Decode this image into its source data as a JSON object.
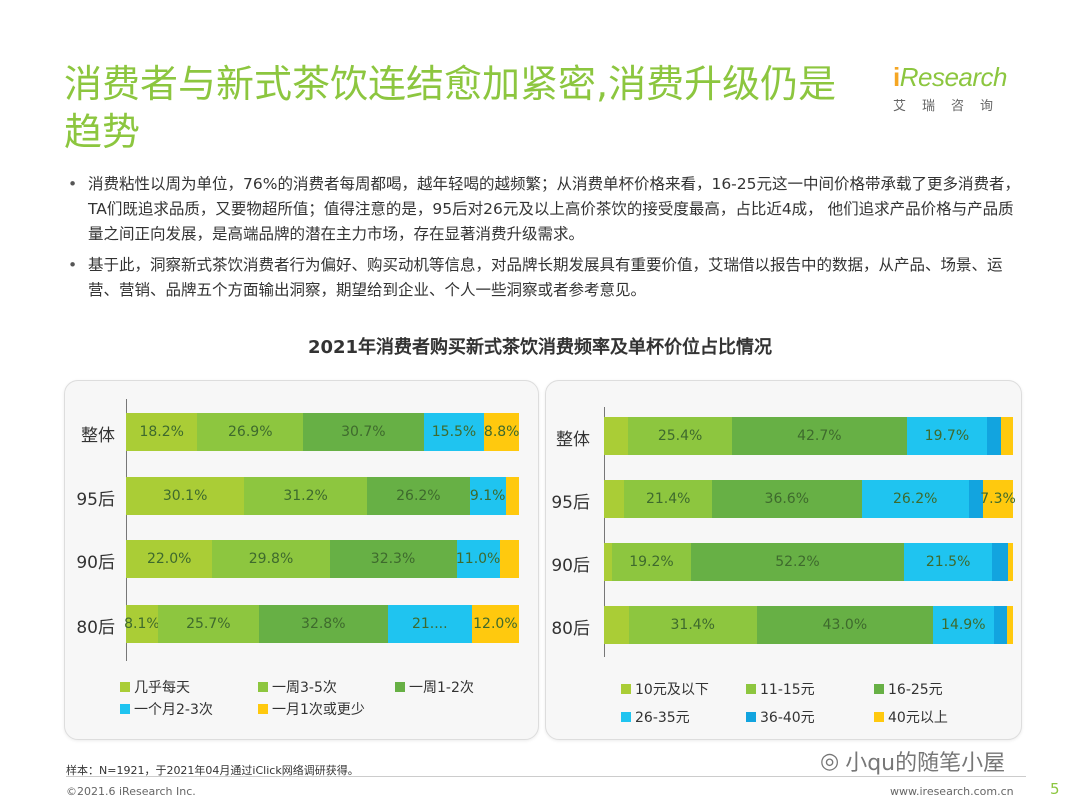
{
  "header": {
    "title": "消费者与新式茶饮连结愈加紧密,消费升级仍是趋势",
    "logo_brand": "iResearch",
    "logo_cn": "艾瑞咨询"
  },
  "bullets": [
    "消费粘性以周为单位，76%的消费者每周都喝，越年轻喝的越频繁；从消费单杯价格来看，16-25元这一中间价格带承载了更多消费者，TA们既追求品质，又要物超所值；值得注意的是，95后对26元及以上高价茶饮的接受度最高，占比近4成， 他们追求产品价格与产品质量之间正向发展，是高端品牌的潜在主力市场，存在显著消费升级需求。",
    "基于此，洞察新式茶饮消费者行为偏好、购买动机等信息，对品牌长期发展具有重要价值，艾瑞借以报告中的数据，从产品、场景、运营、营销、品牌五个方面输出洞察，期望给到企业、个人一些洞察或者参考意见。"
  ],
  "chart_title": "2021年消费者购买新式茶饮消费频率及单杯价位占比情况",
  "chart_data": [
    {
      "type": "bar",
      "orientation": "horizontal",
      "stacked": "100%",
      "categories": [
        "整体",
        "95后",
        "90后",
        "80后"
      ],
      "series": [
        {
          "name": "几乎每天",
          "color": "#aacd36",
          "values": [
            18.2,
            30.1,
            22.0,
            8.1
          ],
          "labels": [
            "18.2%",
            "30.1%",
            "22.0%",
            "8.1%"
          ]
        },
        {
          "name": "一周3-5次",
          "color": "#8dc63f",
          "values": [
            26.9,
            31.2,
            29.8,
            25.7
          ],
          "labels": [
            "26.9%",
            "31.2%",
            "29.8%",
            "25.7%"
          ]
        },
        {
          "name": "一周1-2次",
          "color": "#67b045",
          "values": [
            30.7,
            26.2,
            32.3,
            32.8
          ],
          "labels": [
            "30.7%",
            "26.2%",
            "32.3%",
            "32.8%"
          ]
        },
        {
          "name": "一个月2-3次",
          "color": "#1fc4f0",
          "values": [
            15.5,
            9.1,
            11.0,
            21.4
          ],
          "labels": [
            "15.5%",
            "9.1%",
            "11.0%",
            "21...."
          ]
        },
        {
          "name": "一月1次或更少",
          "color": "#ffc90e",
          "values": [
            8.8,
            3.4,
            4.9,
            12.0
          ],
          "labels": [
            "8.8%",
            "",
            "",
            "12.0%"
          ]
        }
      ],
      "legend": "bottom",
      "grid": false
    },
    {
      "type": "bar",
      "orientation": "horizontal",
      "stacked": "100%",
      "categories": [
        "整体",
        "95后",
        "90后",
        "80后"
      ],
      "series": [
        {
          "name": "10元及以下",
          "color": "#aacd36",
          "values": [
            5.9,
            5.0,
            2.0,
            6.0
          ],
          "labels": [
            "",
            "",
            "",
            ""
          ]
        },
        {
          "name": "11-15元",
          "color": "#8dc63f",
          "values": [
            25.4,
            21.4,
            19.2,
            31.4
          ],
          "labels": [
            "25.4%",
            "21.4%",
            "19.2%",
            "31.4%"
          ]
        },
        {
          "name": "16-25元",
          "color": "#67b045",
          "values": [
            42.7,
            36.6,
            52.2,
            43.0
          ],
          "labels": [
            "42.7%",
            "36.6%",
            "52.2%",
            "43.0%"
          ]
        },
        {
          "name": "26-35元",
          "color": "#1fc4f0",
          "values": [
            19.7,
            26.2,
            21.5,
            14.9
          ],
          "labels": [
            "19.7%",
            "26.2%",
            "21.5%",
            "14.9%"
          ]
        },
        {
          "name": "36-40元",
          "color": "#12a4df",
          "values": [
            3.3,
            3.5,
            4.0,
            3.3
          ],
          "labels": [
            "",
            "",
            "",
            ""
          ]
        },
        {
          "name": "40元以上",
          "color": "#ffc90e",
          "values": [
            3.0,
            7.3,
            1.1,
            1.4
          ],
          "labels": [
            "",
            "7.3%",
            "",
            ""
          ]
        }
      ],
      "legend": "bottom",
      "grid": false
    }
  ],
  "footer": {
    "sample": "样本：N=1921，于2021年04月通过iClick网络调研获得。",
    "copyright": "©2021.6 iResearch Inc.",
    "site": "www.iresearch.com.cn",
    "page": "5",
    "watermark": "小qu的随笔小屋"
  }
}
